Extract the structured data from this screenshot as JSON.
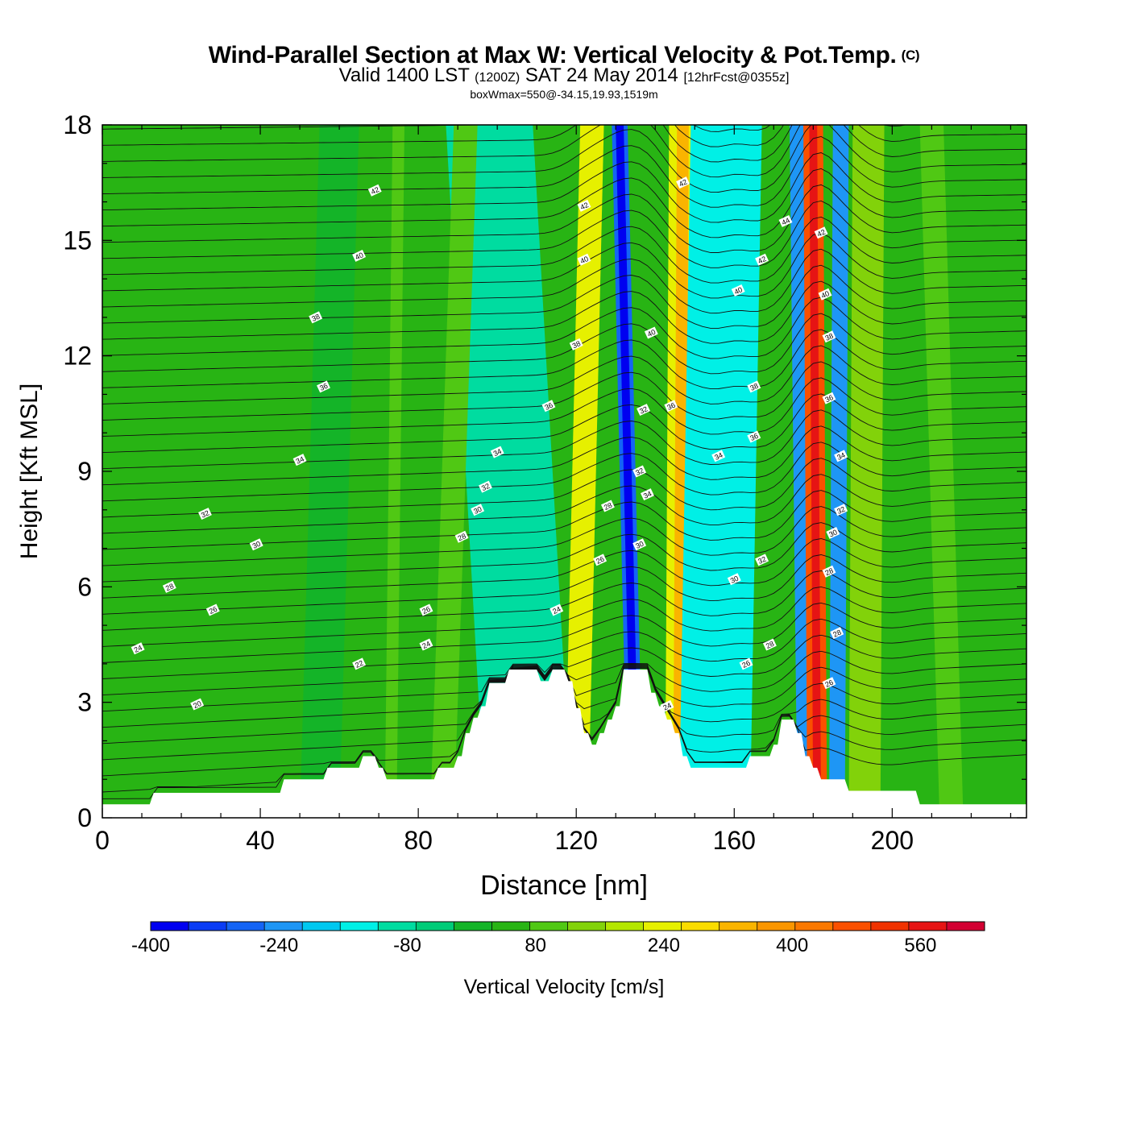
{
  "title": {
    "main": "Wind-Parallel Section at Max W: Vertical Velocity & Pot.Temp.",
    "copyright": "(C)",
    "valid_prefix": "Valid 1400 LST",
    "valid_utc": "(1200Z)",
    "valid_date": "SAT 24 May 2014",
    "forecast": "[12hrFcst@0355z]",
    "box_info": "boxWmax=550@-34.15,19.93,1519m"
  },
  "chart_data": {
    "type": "heatmap",
    "xlabel": "Distance [nm]",
    "ylabel": "Height [Kft MSL]",
    "xlim": [
      0,
      234
    ],
    "ylim": [
      0,
      18
    ],
    "x_ticks": [
      "0",
      "40",
      "80",
      "120",
      "160",
      "200"
    ],
    "y_ticks": [
      "0",
      "3",
      "6",
      "9",
      "12",
      "15",
      "18"
    ],
    "colorbar": {
      "label": "Vertical Velocity [cm/s]",
      "range": [
        -400,
        640
      ],
      "step": 40,
      "tick_labels": [
        "-400",
        "-240",
        "-80",
        "80",
        "240",
        "400",
        "560"
      ],
      "colors": [
        "#0000f0",
        "#0a3cf5",
        "#1464f5",
        "#1e96f5",
        "#00c8f0",
        "#00f0e6",
        "#00dca0",
        "#00cc78",
        "#14b428",
        "#28b414",
        "#50c814",
        "#82d20a",
        "#b4e600",
        "#e6f000",
        "#fadc00",
        "#fab400",
        "#fa9600",
        "#fa7800",
        "#fa5000",
        "#f03200",
        "#e61414",
        "#d20032"
      ]
    },
    "topography_kft": [
      [
        0,
        0.35
      ],
      [
        12,
        0.35
      ],
      [
        13,
        0.65
      ],
      [
        45,
        0.65
      ],
      [
        46,
        1.0
      ],
      [
        56,
        1.0
      ],
      [
        57,
        1.3
      ],
      [
        65,
        1.3
      ],
      [
        66,
        1.6
      ],
      [
        69,
        1.6
      ],
      [
        70,
        1.3
      ],
      [
        71,
        1.3
      ],
      [
        72,
        1.0
      ],
      [
        84,
        1.0
      ],
      [
        85,
        1.3
      ],
      [
        89,
        1.3
      ],
      [
        90,
        1.6
      ],
      [
        91,
        1.6
      ],
      [
        92,
        2.2
      ],
      [
        93,
        2.2
      ],
      [
        94,
        2.6
      ],
      [
        95,
        2.6
      ],
      [
        96,
        2.9
      ],
      [
        97,
        2.9
      ],
      [
        98,
        3.5
      ],
      [
        102,
        3.5
      ],
      [
        103,
        3.85
      ],
      [
        110,
        3.85
      ],
      [
        111,
        3.55
      ],
      [
        113,
        3.55
      ],
      [
        114,
        3.85
      ],
      [
        117,
        3.85
      ],
      [
        118,
        3.55
      ],
      [
        119,
        3.55
      ],
      [
        120,
        2.85
      ],
      [
        121,
        2.85
      ],
      [
        122,
        2.2
      ],
      [
        123,
        2.2
      ],
      [
        124,
        1.9
      ],
      [
        125,
        1.9
      ],
      [
        126,
        2.2
      ],
      [
        127,
        2.2
      ],
      [
        128,
        2.55
      ],
      [
        129,
        2.55
      ],
      [
        130,
        2.9
      ],
      [
        131,
        2.9
      ],
      [
        132,
        3.85
      ],
      [
        138,
        3.85
      ],
      [
        139,
        3.25
      ],
      [
        140,
        3.25
      ],
      [
        141,
        2.9
      ],
      [
        142,
        2.9
      ],
      [
        143,
        2.55
      ],
      [
        144,
        2.55
      ],
      [
        145,
        2.2
      ],
      [
        146,
        2.2
      ],
      [
        147,
        1.6
      ],
      [
        148,
        1.6
      ],
      [
        149,
        1.3
      ],
      [
        163,
        1.3
      ],
      [
        164,
        1.6
      ],
      [
        169,
        1.6
      ],
      [
        170,
        1.9
      ],
      [
        171,
        1.9
      ],
      [
        172,
        2.55
      ],
      [
        175,
        2.55
      ],
      [
        176,
        2.2
      ],
      [
        177,
        2.2
      ],
      [
        178,
        1.6
      ],
      [
        179,
        1.6
      ],
      [
        180,
        1.3
      ],
      [
        181,
        1.3
      ],
      [
        182,
        1.0
      ],
      [
        188,
        1.0
      ],
      [
        189,
        0.7
      ],
      [
        206,
        0.7
      ],
      [
        207,
        0.35
      ],
      [
        234,
        0.35
      ]
    ],
    "velocity_bands": [
      {
        "x_bottom": 120,
        "x_top": 124,
        "width_nm": 6,
        "value_index": 13
      },
      {
        "x_bottom": 135,
        "x_top": 131,
        "width_nm": 4,
        "value_index": 2
      },
      {
        "x_bottom": 135,
        "x_top": 131,
        "width_nm": 2,
        "value_index": 0
      },
      {
        "x_bottom": 146,
        "x_top": 147,
        "width_nm": 7,
        "value_index": 13
      },
      {
        "x_bottom": 146,
        "x_top": 147,
        "width_nm": 3,
        "value_index": 15
      },
      {
        "x_bottom": 155,
        "x_top": 158,
        "width_nm": 18,
        "value_index": 5
      },
      {
        "x_bottom": 178,
        "x_top": 176,
        "width_nm": 4,
        "value_index": 3
      },
      {
        "x_bottom": 181,
        "x_top": 180,
        "width_nm": 5,
        "value_index": 18
      },
      {
        "x_bottom": 181,
        "x_top": 180,
        "width_nm": 2,
        "value_index": 20
      },
      {
        "x_bottom": 186,
        "x_top": 187,
        "width_nm": 4,
        "value_index": 3
      },
      {
        "x_bottom": 193,
        "x_top": 194,
        "width_nm": 8,
        "value_index": 11
      },
      {
        "x_bottom": 108,
        "x_top": 98,
        "width_nm": 22,
        "value_index": 6
      },
      {
        "x_bottom": 86,
        "x_top": 92,
        "width_nm": 6,
        "value_index": 10
      },
      {
        "x_bottom": 55,
        "x_top": 60,
        "width_nm": 10,
        "value_index": 8
      },
      {
        "x_bottom": 73,
        "x_top": 75,
        "width_nm": 3,
        "value_index": 10
      },
      {
        "x_bottom": 215,
        "x_top": 210,
        "width_nm": 6,
        "value_index": 10
      }
    ],
    "contour_labels": [
      {
        "x": 69,
        "y": 16.3,
        "text": "42"
      },
      {
        "x": 65,
        "y": 14.6,
        "text": "40"
      },
      {
        "x": 54,
        "y": 13.0,
        "text": "38"
      },
      {
        "x": 56,
        "y": 11.2,
        "text": "36"
      },
      {
        "x": 50,
        "y": 9.3,
        "text": "34"
      },
      {
        "x": 26,
        "y": 7.9,
        "text": "32"
      },
      {
        "x": 39,
        "y": 7.1,
        "text": "30"
      },
      {
        "x": 17,
        "y": 6.0,
        "text": "28"
      },
      {
        "x": 28,
        "y": 5.4,
        "text": "26"
      },
      {
        "x": 9,
        "y": 4.4,
        "text": "24"
      },
      {
        "x": 65,
        "y": 4.0,
        "text": "22"
      },
      {
        "x": 24,
        "y": 2.95,
        "text": "20"
      },
      {
        "x": 82,
        "y": 5.4,
        "text": "26"
      },
      {
        "x": 82,
        "y": 4.5,
        "text": "24"
      },
      {
        "x": 91,
        "y": 7.3,
        "text": "28"
      },
      {
        "x": 95,
        "y": 8.0,
        "text": "30"
      },
      {
        "x": 97,
        "y": 8.6,
        "text": "32"
      },
      {
        "x": 100,
        "y": 9.5,
        "text": "34"
      },
      {
        "x": 113,
        "y": 10.7,
        "text": "36"
      },
      {
        "x": 120,
        "y": 12.3,
        "text": "38"
      },
      {
        "x": 122,
        "y": 14.5,
        "text": "40"
      },
      {
        "x": 122,
        "y": 15.9,
        "text": "42"
      },
      {
        "x": 115,
        "y": 5.4,
        "text": "24"
      },
      {
        "x": 126,
        "y": 6.7,
        "text": "26"
      },
      {
        "x": 128,
        "y": 8.1,
        "text": "28"
      },
      {
        "x": 136,
        "y": 7.1,
        "text": "30"
      },
      {
        "x": 136,
        "y": 9.0,
        "text": "32"
      },
      {
        "x": 138,
        "y": 8.4,
        "text": "34"
      },
      {
        "x": 137,
        "y": 10.6,
        "text": "32"
      },
      {
        "x": 139,
        "y": 12.6,
        "text": "40"
      },
      {
        "x": 144,
        "y": 10.7,
        "text": "36"
      },
      {
        "x": 147,
        "y": 16.5,
        "text": "42"
      },
      {
        "x": 143,
        "y": 2.9,
        "text": "24"
      },
      {
        "x": 163,
        "y": 4.0,
        "text": "26"
      },
      {
        "x": 169,
        "y": 4.5,
        "text": "28"
      },
      {
        "x": 160,
        "y": 6.2,
        "text": "30"
      },
      {
        "x": 167,
        "y": 6.7,
        "text": "32"
      },
      {
        "x": 156,
        "y": 9.4,
        "text": "34"
      },
      {
        "x": 165,
        "y": 9.9,
        "text": "36"
      },
      {
        "x": 165,
        "y": 11.2,
        "text": "38"
      },
      {
        "x": 161,
        "y": 13.7,
        "text": "40"
      },
      {
        "x": 167,
        "y": 14.5,
        "text": "42"
      },
      {
        "x": 173,
        "y": 15.5,
        "text": "44"
      },
      {
        "x": 184,
        "y": 3.5,
        "text": "26"
      },
      {
        "x": 186,
        "y": 4.8,
        "text": "28"
      },
      {
        "x": 184,
        "y": 6.4,
        "text": "28"
      },
      {
        "x": 185,
        "y": 7.4,
        "text": "30"
      },
      {
        "x": 187,
        "y": 8.0,
        "text": "32"
      },
      {
        "x": 187,
        "y": 9.4,
        "text": "34"
      },
      {
        "x": 184,
        "y": 10.9,
        "text": "36"
      },
      {
        "x": 184,
        "y": 12.5,
        "text": "38"
      },
      {
        "x": 183,
        "y": 13.6,
        "text": "40"
      },
      {
        "x": 182,
        "y": 15.2,
        "text": "42"
      }
    ]
  }
}
